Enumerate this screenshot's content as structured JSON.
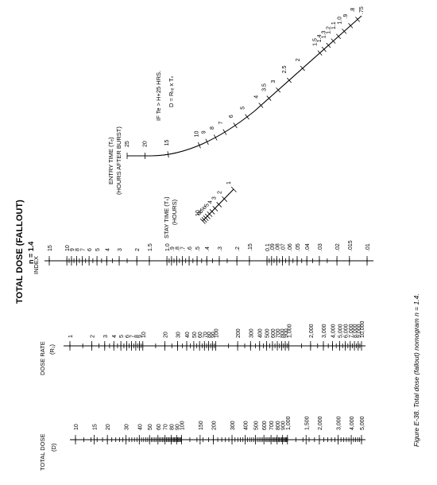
{
  "title": "TOTAL DOSE (FALLOUT)",
  "subtitle": "n = 1.4",
  "caption": "Figure E-38. Total dose (fallout) nomogram n = 1.4.",
  "scales": {
    "total_dose": {
      "label_1": "TOTAL DOSE",
      "label_2": "(D)",
      "ticks": [
        "10",
        "15",
        "20",
        "30",
        "40",
        "50",
        "60",
        "70",
        "80",
        "90",
        "100",
        "150",
        "200",
        "300",
        "400",
        "500",
        "600",
        "700",
        "800",
        "900",
        "1,000",
        "1,500",
        "2,000",
        "3,000",
        "4,000",
        "5,000"
      ]
    },
    "dose_rate": {
      "label_1": "DOSE RATE",
      "label_2": "(R₁)",
      "ticks": [
        "1",
        "2",
        "3",
        "4",
        "5",
        "6",
        "7",
        "8",
        "9",
        "10",
        "20",
        "30",
        "40",
        "50",
        "60",
        "70",
        "80",
        "90",
        "100",
        "200",
        "300",
        "400",
        "500",
        "600",
        "700",
        "800",
        "900",
        "1,000",
        "2,000",
        "3,000",
        "4,000",
        "5,000",
        "6,000",
        "7,000",
        "8,000",
        "9,000",
        "10,000"
      ]
    },
    "index": {
      "label_1": "INDEX",
      "ticks": [
        "15",
        "10",
        "9",
        "8",
        "7",
        "6",
        "5",
        "4",
        "3",
        "2",
        "1.5",
        "1.0",
        ".9",
        ".8",
        ".7",
        ".6",
        ".5",
        ".4",
        ".3",
        ".2",
        ".15",
        "0.1",
        ".09",
        ".08",
        ".07",
        ".06",
        ".05",
        ".04",
        ".03",
        ".02",
        ".015",
        ".01"
      ]
    },
    "stay_time": {
      "label_1": "STAY TIME (Tₛ)",
      "label_2": "(HOURS)",
      "ticks": [
        "1",
        "2",
        "3",
        "4",
        "5",
        "6",
        "7",
        "8",
        "9",
        "10"
      ]
    },
    "entry_time": {
      "label_1": "ENTRY TIME (Tₑ)",
      "label_2": "(HOURS AFTER BURST)",
      "ticks": [
        "25",
        "20",
        "15",
        "10",
        "9",
        "8",
        "7",
        "6",
        "5",
        "4",
        "3.5",
        "3",
        "2.5",
        "2",
        "1.5",
        "1.4",
        "1.3",
        "1.2",
        "1.1",
        "1.0",
        ".9",
        ".8",
        ".75"
      ]
    }
  },
  "note": {
    "line_1": "IF Te > H+25 HRS.",
    "line_2": "D = Rₜₑ x Tₛ"
  }
}
